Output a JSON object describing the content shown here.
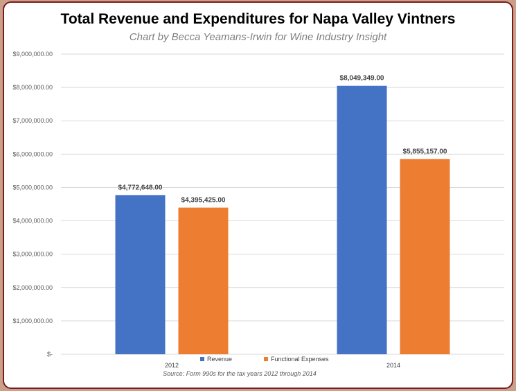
{
  "chart_data": {
    "type": "bar",
    "title": "Total Revenue and Expenditures for Napa Valley Vintners",
    "subtitle": "Chart by Becca Yeamans-Irwin for Wine Industry Insight",
    "source": "Source:  Form 990s for the tax years 2012 through 2014",
    "categories": [
      "2012",
      "2014"
    ],
    "series": [
      {
        "name": "Revenue",
        "color": "#4472c4",
        "values": [
          4772648.0,
          8049349.0
        ],
        "labels": [
          "$4,772,648.00",
          "$8,049,349.00"
        ]
      },
      {
        "name": "Functional Expenses",
        "color": "#ed7d31",
        "values": [
          4395425.0,
          5855157.0
        ],
        "labels": [
          "$4,395,425.00",
          "$5,855,157.00"
        ]
      }
    ],
    "ylim": [
      0,
      9000000
    ],
    "yticks": [
      {
        "value": 0,
        "label": "$-"
      },
      {
        "value": 1000000,
        "label": "$1,000,000.00"
      },
      {
        "value": 2000000,
        "label": "$2,000,000.00"
      },
      {
        "value": 3000000,
        "label": "$3,000,000.00"
      },
      {
        "value": 4000000,
        "label": "$4,000,000.00"
      },
      {
        "value": 5000000,
        "label": "$5,000,000.00"
      },
      {
        "value": 6000000,
        "label": "$6,000,000.00"
      },
      {
        "value": 7000000,
        "label": "$7,000,000.00"
      },
      {
        "value": 8000000,
        "label": "$8,000,000.00"
      },
      {
        "value": 9000000,
        "label": "$9,000,000.00"
      }
    ],
    "grid": true,
    "legend": "bottom-center"
  }
}
